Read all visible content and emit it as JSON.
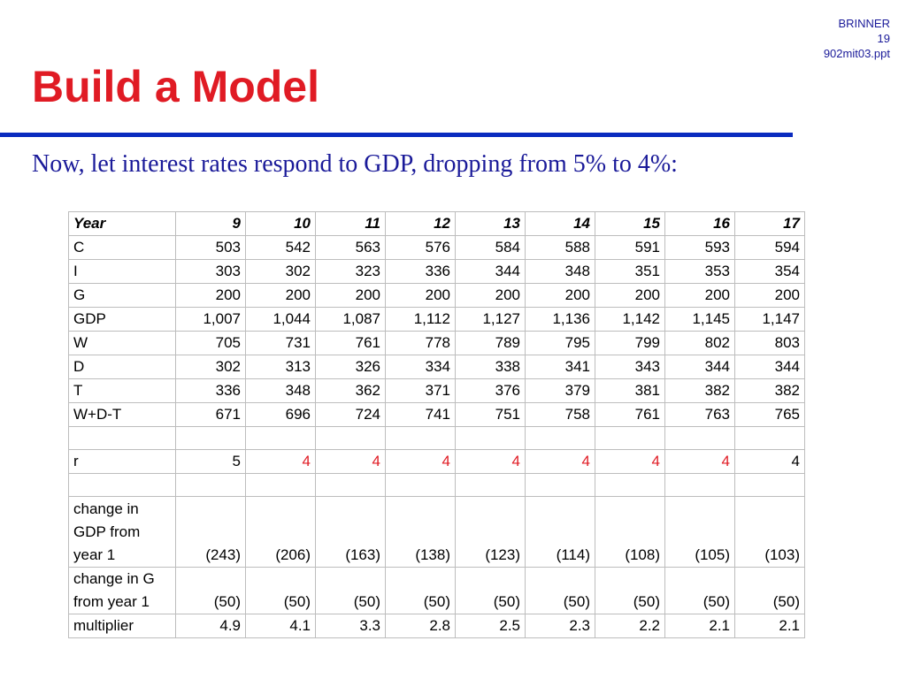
{
  "header_tag": {
    "author": "BRINNER",
    "page": "19",
    "file": "902mit03.ppt"
  },
  "title": "Build a Model",
  "subtitle": "Now, let interest rates respond to GDP, dropping from 5% to 4%:",
  "table": {
    "header": {
      "label": "Year",
      "values": [
        "9",
        "10",
        "11",
        "12",
        "13",
        "14",
        "15",
        "16",
        "17"
      ]
    },
    "rows": [
      {
        "label": "C",
        "values": [
          "503",
          "542",
          "563",
          "576",
          "584",
          "588",
          "591",
          "593",
          "594"
        ]
      },
      {
        "label": "I",
        "values": [
          "303",
          "302",
          "323",
          "336",
          "344",
          "348",
          "351",
          "353",
          "354"
        ]
      },
      {
        "label": "G",
        "values": [
          "200",
          "200",
          "200",
          "200",
          "200",
          "200",
          "200",
          "200",
          "200"
        ]
      },
      {
        "label": "GDP",
        "values": [
          "1,007",
          "1,044",
          "1,087",
          "1,112",
          "1,127",
          "1,136",
          "1,142",
          "1,145",
          "1,147"
        ]
      },
      {
        "label": "W",
        "values": [
          "705",
          "731",
          "761",
          "778",
          "789",
          "795",
          "799",
          "802",
          "803"
        ]
      },
      {
        "label": "D",
        "values": [
          "302",
          "313",
          "326",
          "334",
          "338",
          "341",
          "343",
          "344",
          "344"
        ]
      },
      {
        "label": "T",
        "values": [
          "336",
          "348",
          "362",
          "371",
          "376",
          "379",
          "381",
          "382",
          "382"
        ]
      },
      {
        "label": "W+D-T",
        "values": [
          "671",
          "696",
          "724",
          "741",
          "751",
          "758",
          "761",
          "763",
          "765"
        ]
      }
    ],
    "r_row": {
      "label": "r",
      "values": [
        "5",
        "4",
        "4",
        "4",
        "4",
        "4",
        "4",
        "4",
        "4"
      ]
    },
    "change_gdp": {
      "label_lines": [
        "change in",
        "GDP from",
        "year 1"
      ],
      "values": [
        "(243)",
        "(206)",
        "(163)",
        "(138)",
        "(123)",
        "(114)",
        "(108)",
        "(105)",
        "(103)"
      ]
    },
    "change_g": {
      "label_lines": [
        "change in G",
        "from year 1"
      ],
      "values": [
        "(50)",
        "(50)",
        "(50)",
        "(50)",
        "(50)",
        "(50)",
        "(50)",
        "(50)",
        "(50)"
      ]
    },
    "multiplier": {
      "label": "multiplier",
      "values": [
        "4.9",
        "4.1",
        "3.3",
        "2.8",
        "2.5",
        "2.3",
        "2.2",
        "2.1",
        "2.1"
      ]
    },
    "highlight_color": "#e01b24"
  }
}
